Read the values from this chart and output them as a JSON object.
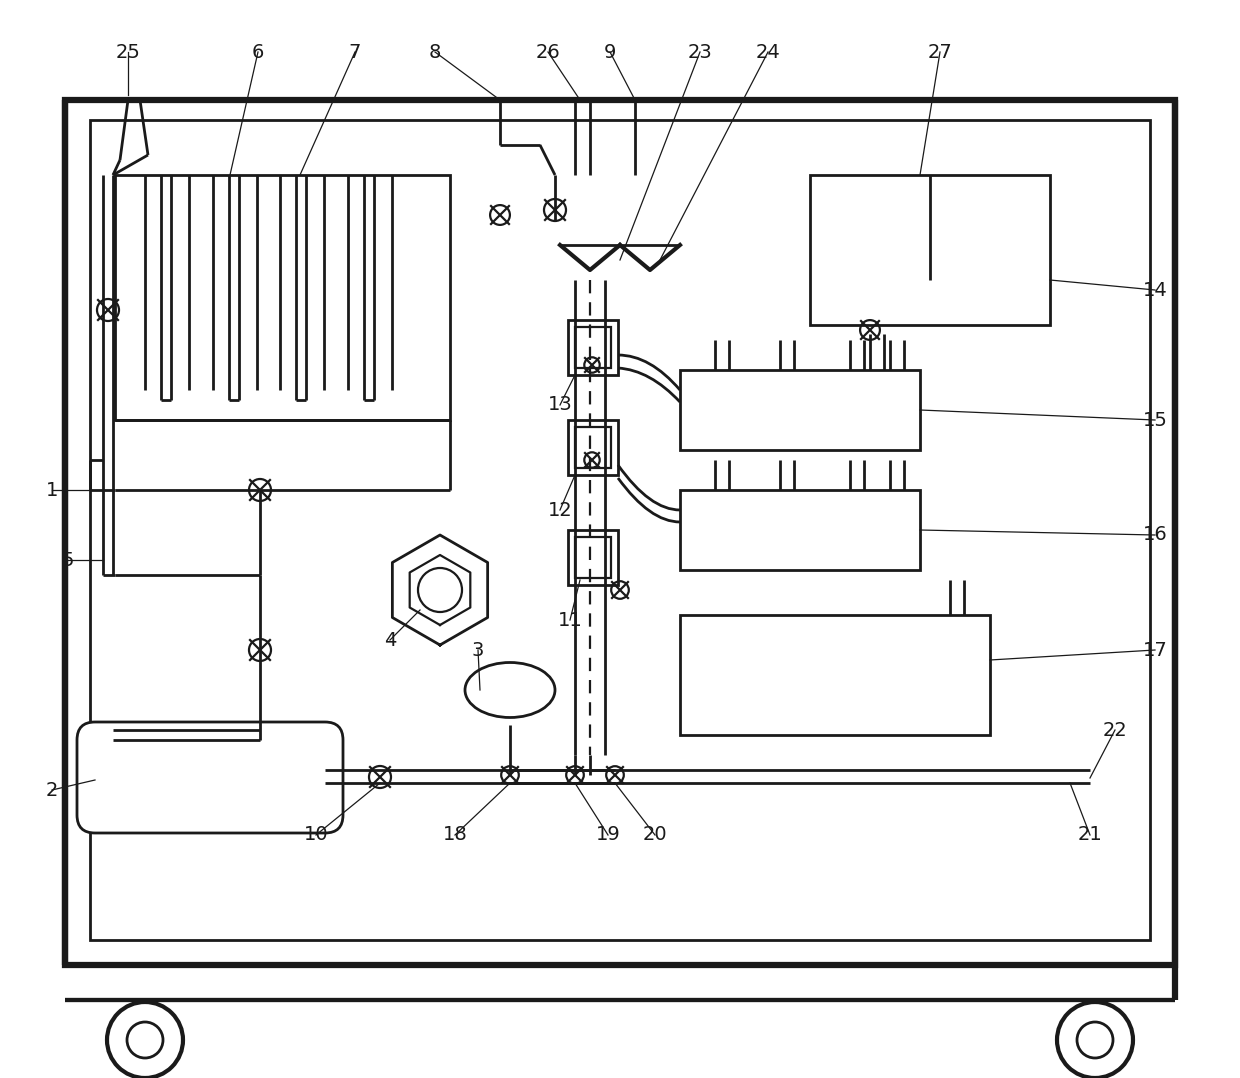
{
  "bg_color": "#ffffff",
  "lc": "#1a1a1a",
  "lw": 2.0,
  "fig_w": 12.4,
  "fig_h": 10.78,
  "label_fontsize": 14
}
